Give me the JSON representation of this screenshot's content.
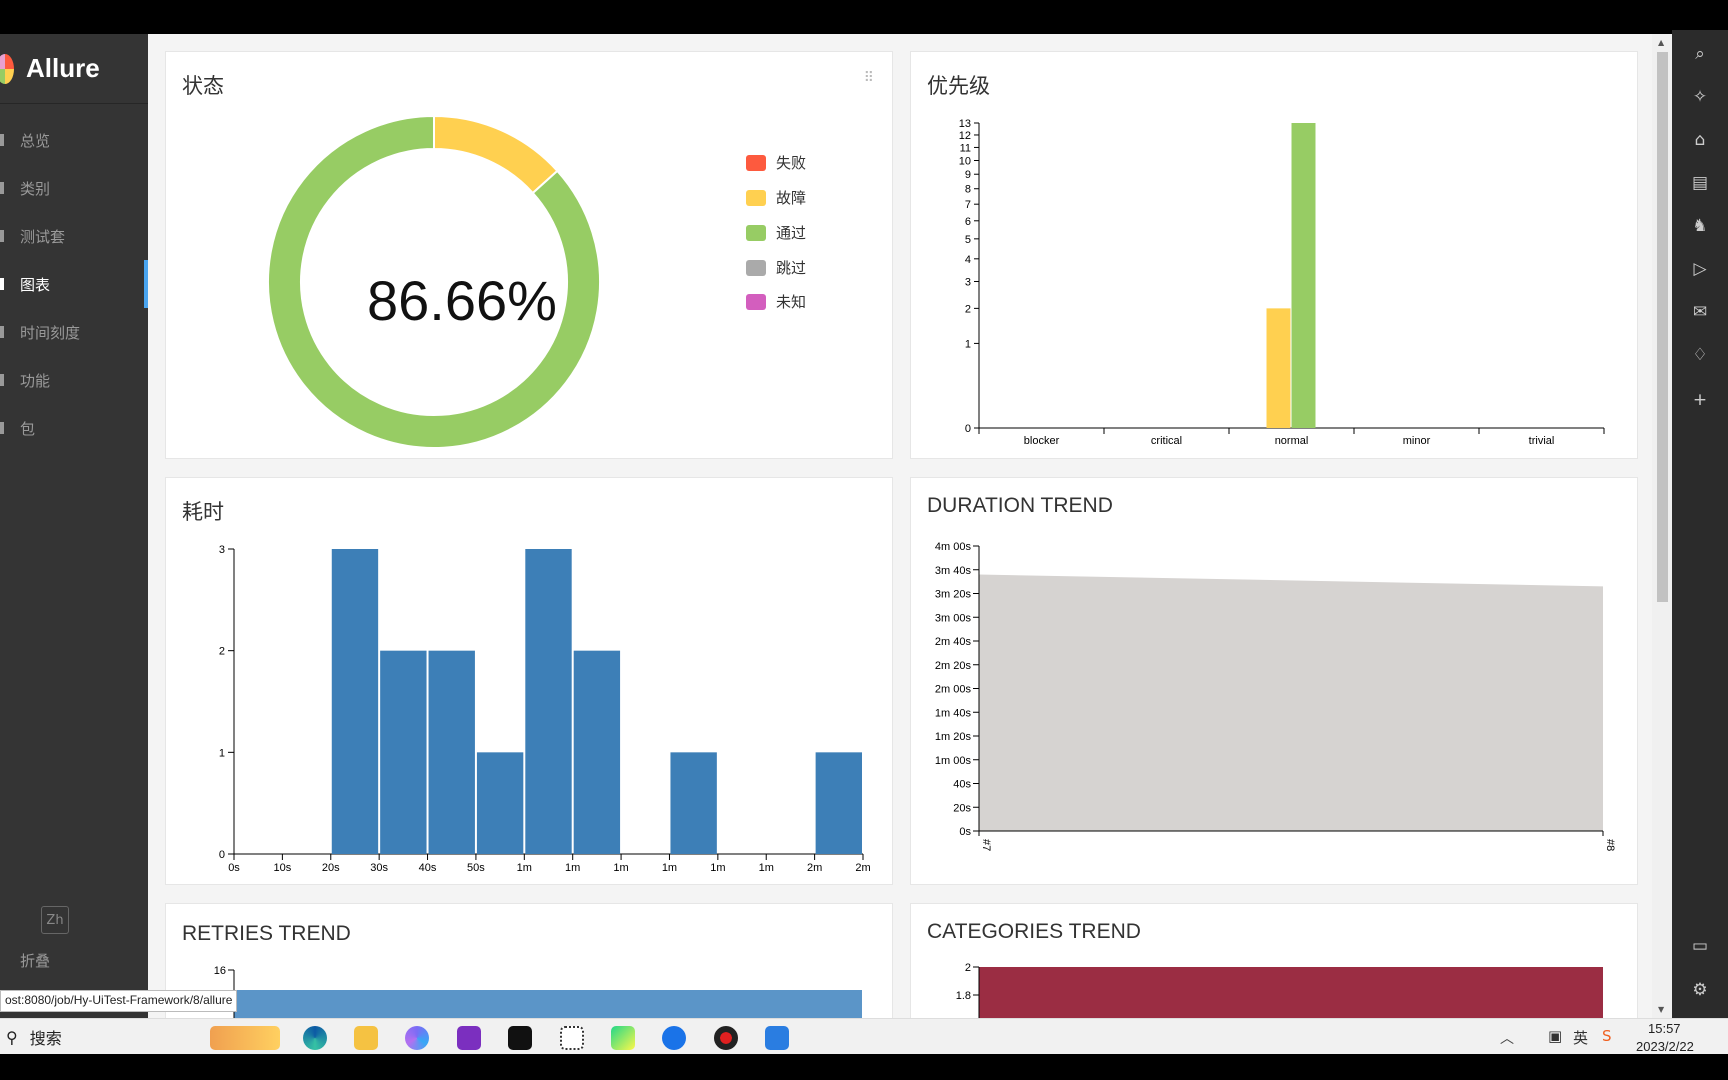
{
  "app": {
    "name": "Allure"
  },
  "sidebar": {
    "items": [
      {
        "label": "总览",
        "active": false
      },
      {
        "label": "类别",
        "active": false
      },
      {
        "label": "测试套",
        "active": false
      },
      {
        "label": "图表",
        "active": true
      },
      {
        "label": "时间刻度",
        "active": false
      },
      {
        "label": "功能",
        "active": false
      },
      {
        "label": "包",
        "active": false
      }
    ],
    "lang_button": "Zh",
    "collapse_label": "折叠"
  },
  "cards": {
    "status": {
      "title": "状态",
      "percent": "86.66%"
    },
    "priority": {
      "title": "优先级"
    },
    "duration": {
      "title": "耗时"
    },
    "duration_trend": {
      "title": "DURATION TREND"
    },
    "retries_trend": {
      "title": "RETRIES TREND"
    },
    "categories_trend": {
      "title": "CATEGORIES TREND"
    }
  },
  "chart_data": [
    {
      "id": "status",
      "type": "pie",
      "title": "状态",
      "center_label": "86.66%",
      "legend": [
        {
          "name": "失败",
          "color": "#fd5a3e"
        },
        {
          "name": "故障",
          "color": "#ffd050"
        },
        {
          "name": "通过",
          "color": "#97cc64"
        },
        {
          "name": "跳过",
          "color": "#aaaaaa"
        },
        {
          "name": "未知",
          "color": "#d35ebe"
        }
      ],
      "slices": [
        {
          "name": "故障",
          "value": 2,
          "color": "#ffd050"
        },
        {
          "name": "通过",
          "value": 13,
          "color": "#97cc64"
        }
      ]
    },
    {
      "id": "priority",
      "type": "bar",
      "title": "优先级",
      "categories": [
        "blocker",
        "critical",
        "normal",
        "minor",
        "trivial"
      ],
      "series": [
        {
          "color": "#ffd050",
          "values": [
            0,
            0,
            2,
            0,
            0
          ]
        },
        {
          "color": "#97cc64",
          "values": [
            0,
            0,
            13,
            0,
            0
          ]
        }
      ],
      "yticks": [
        "0",
        "1",
        "2",
        "3",
        "4",
        "5",
        "6",
        "7",
        "8",
        "9",
        "10",
        "11",
        "12",
        "13"
      ],
      "scale": "sqrt",
      "ylim": [
        0,
        13
      ]
    },
    {
      "id": "duration",
      "type": "bar",
      "title": "耗时",
      "xticks": [
        "0s",
        "10s",
        "20s",
        "30s",
        "40s",
        "50s",
        "1m",
        "1m",
        "1m",
        "1m",
        "1m",
        "1m",
        "2m",
        "2m"
      ],
      "values": [
        0,
        0,
        3,
        2,
        2,
        1,
        3,
        2,
        0,
        1,
        0,
        0,
        1
      ],
      "yticks": [
        "0",
        "1",
        "2",
        "3"
      ],
      "ylim": [
        0,
        3
      ],
      "color": "#3d7fb7"
    },
    {
      "id": "duration_trend",
      "type": "area",
      "title": "DURATION TREND",
      "x": [
        "#7",
        "#8"
      ],
      "y_seconds": [
        216,
        206
      ],
      "yticks": [
        "0s",
        "20s",
        "40s",
        "1m 00s",
        "1m 20s",
        "1m 40s",
        "2m 00s",
        "2m 20s",
        "2m 40s",
        "3m 00s",
        "3m 20s",
        "3m 40s",
        "4m 00s"
      ],
      "ylim": [
        0,
        240
      ],
      "color": "#d6d3d1"
    },
    {
      "id": "retries_trend",
      "type": "area",
      "title": "RETRIES TREND",
      "yticks": [
        "16"
      ],
      "color": "#5b95c8"
    },
    {
      "id": "categories_trend",
      "type": "area",
      "title": "CATEGORIES TREND",
      "yticks": [
        "2",
        "1.8"
      ],
      "color": "#9b2d43"
    }
  ],
  "status_url": "ost:8080/job/Hy-UiTest-Framework/8/allure",
  "taskbar": {
    "search_label": "搜索",
    "time": "15:57",
    "date": "2023/2/22",
    "ime": "英"
  }
}
